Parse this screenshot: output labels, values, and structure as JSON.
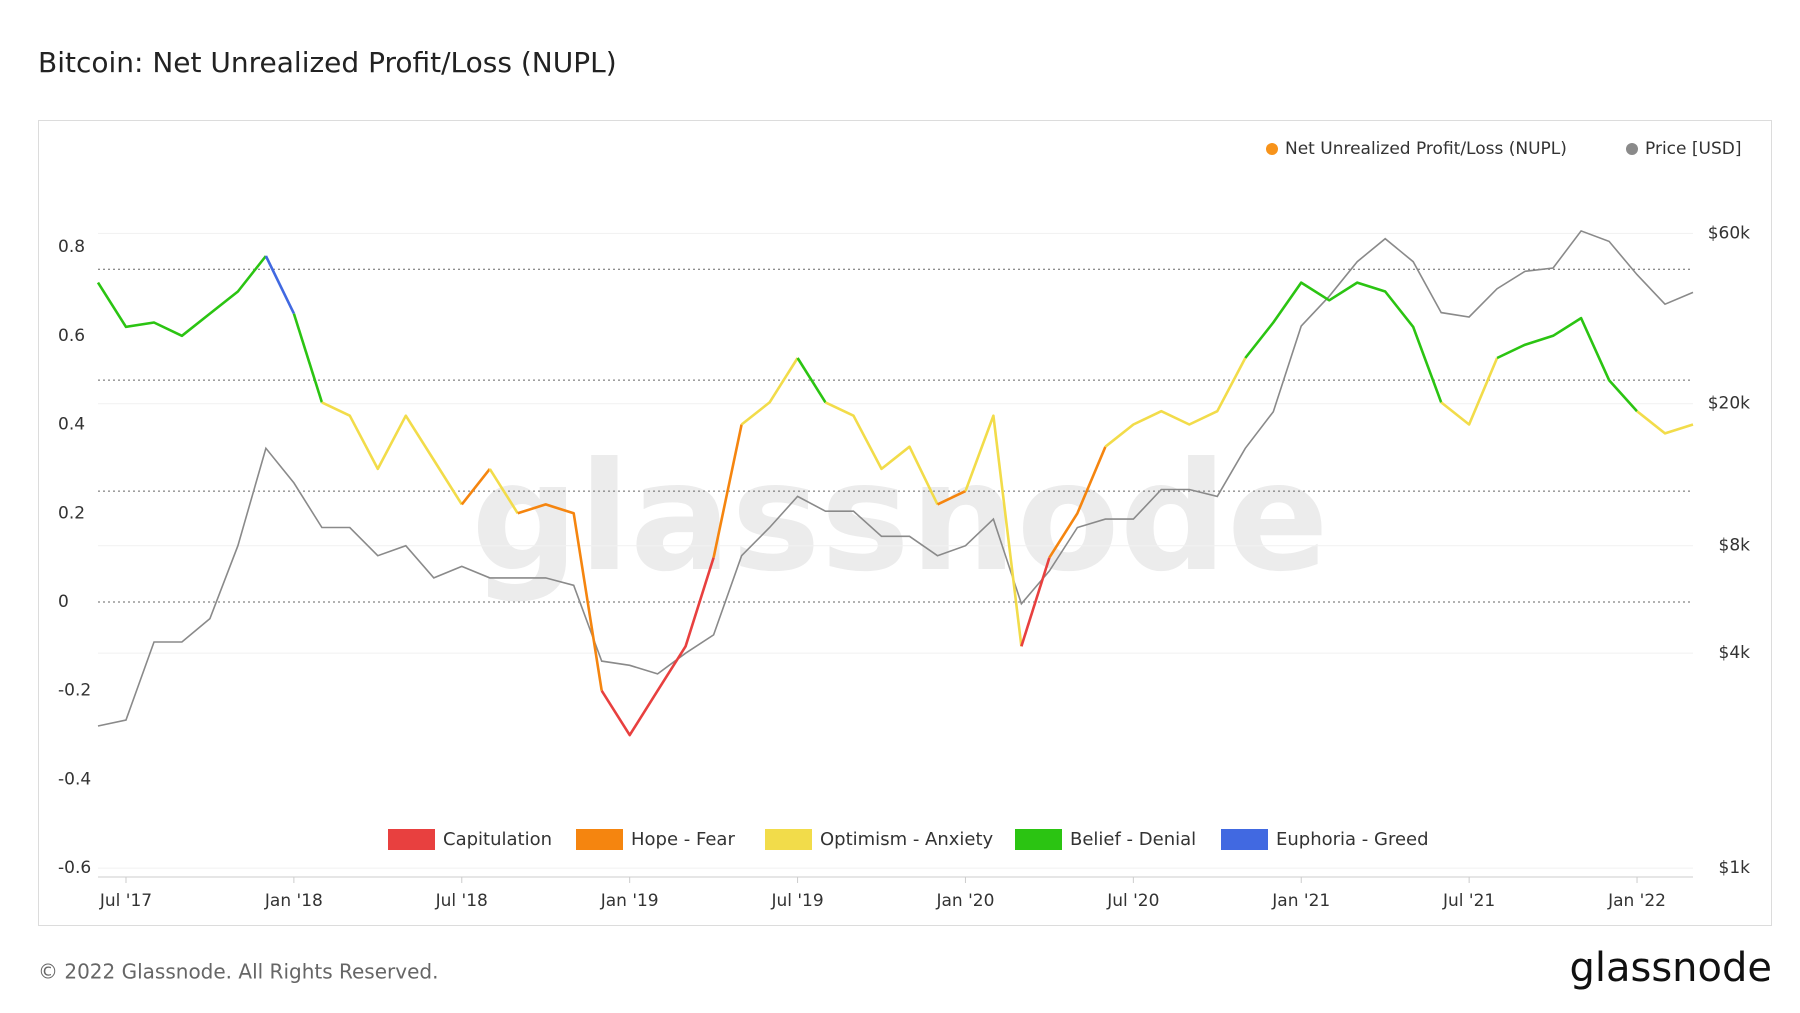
{
  "chart_data": {
    "type": "line",
    "title": "Bitcoin: Net Unrealized Profit/Loss (NUPL)",
    "x": [
      "2017-06",
      "2017-07",
      "2017-08",
      "2017-09",
      "2017-10",
      "2017-11",
      "2017-12",
      "2018-01",
      "2018-02",
      "2018-03",
      "2018-04",
      "2018-05",
      "2018-06",
      "2018-07",
      "2018-08",
      "2018-09",
      "2018-10",
      "2018-11",
      "2018-12",
      "2019-01",
      "2019-02",
      "2019-03",
      "2019-04",
      "2019-05",
      "2019-06",
      "2019-07",
      "2019-08",
      "2019-09",
      "2019-10",
      "2019-11",
      "2019-12",
      "2020-01",
      "2020-02",
      "2020-03",
      "2020-04",
      "2020-05",
      "2020-06",
      "2020-07",
      "2020-08",
      "2020-09",
      "2020-10",
      "2020-11",
      "2020-12",
      "2021-01",
      "2021-02",
      "2021-03",
      "2021-04",
      "2021-05",
      "2021-06",
      "2021-07",
      "2021-08",
      "2021-09",
      "2021-10",
      "2021-11",
      "2021-12",
      "2022-01",
      "2022-02",
      "2022-03"
    ],
    "series": [
      {
        "name": "Net Unrealized Profit/Loss (NUPL)",
        "color": "#f7931a",
        "values": [
          0.72,
          0.62,
          0.63,
          0.6,
          0.65,
          0.7,
          0.78,
          0.65,
          0.45,
          0.42,
          0.3,
          0.42,
          0.32,
          0.22,
          0.3,
          0.2,
          0.22,
          0.2,
          -0.2,
          -0.3,
          -0.2,
          -0.1,
          0.1,
          0.4,
          0.45,
          0.55,
          0.45,
          0.42,
          0.3,
          0.35,
          0.22,
          0.25,
          0.42,
          -0.1,
          0.1,
          0.2,
          0.35,
          0.4,
          0.43,
          0.4,
          0.43,
          0.55,
          0.63,
          0.72,
          0.68,
          0.72,
          0.7,
          0.62,
          0.45,
          0.4,
          0.55,
          0.58,
          0.6,
          0.64,
          0.5,
          0.43,
          0.38,
          0.4
        ]
      },
      {
        "name": "Price [USD]",
        "color": "#8a8a8a",
        "axis": "y2",
        "values": [
          2500,
          2600,
          4300,
          4300,
          5000,
          8000,
          15000,
          12000,
          9000,
          9000,
          7500,
          8000,
          6500,
          7000,
          6500,
          6500,
          6500,
          6200,
          3800,
          3700,
          3500,
          4000,
          4500,
          7500,
          9000,
          11000,
          10000,
          10000,
          8500,
          8500,
          7500,
          8000,
          9500,
          5500,
          6800,
          9000,
          9500,
          9500,
          11500,
          11500,
          11000,
          15000,
          19000,
          33000,
          40000,
          50000,
          58000,
          50000,
          36000,
          35000,
          42000,
          47000,
          48000,
          61000,
          57000,
          46000,
          38000,
          41000
        ]
      }
    ],
    "zones": [
      {
        "name": "Capitulation",
        "color": "#e8403f",
        "from": -1,
        "to": 0
      },
      {
        "name": "Hope - Fear",
        "color": "#f5850f",
        "from": 0,
        "to": 0.25
      },
      {
        "name": "Optimism - Anxiety",
        "color": "#f2dc4a",
        "from": 0.25,
        "to": 0.5
      },
      {
        "name": "Belief - Denial",
        "color": "#2bc412",
        "from": 0.5,
        "to": 0.75
      },
      {
        "name": "Euphoria - Greed",
        "color": "#4169e1",
        "from": 0.75,
        "to": 1
      }
    ],
    "xlim": [
      "2017-06",
      "2022-03"
    ],
    "xticks": [
      {
        "value": "2017-07",
        "label": "Jul '17"
      },
      {
        "value": "2018-01",
        "label": "Jan '18"
      },
      {
        "value": "2018-07",
        "label": "Jul '18"
      },
      {
        "value": "2019-01",
        "label": "Jan '19"
      },
      {
        "value": "2019-07",
        "label": "Jul '19"
      },
      {
        "value": "2020-01",
        "label": "Jan '20"
      },
      {
        "value": "2020-07",
        "label": "Jul '20"
      },
      {
        "value": "2021-01",
        "label": "Jan '21"
      },
      {
        "value": "2021-07",
        "label": "Jul '21"
      },
      {
        "value": "2022-01",
        "label": "Jan '22"
      }
    ],
    "ylim": [
      -0.62,
      0.94
    ],
    "yticks": [
      -0.6,
      -0.4,
      -0.2,
      0,
      0.2,
      0.4,
      0.6,
      0.8
    ],
    "y2lim": [
      944,
      82000
    ],
    "y2_log": true,
    "y2ticks": [
      {
        "value": 1000,
        "label": "$1k"
      },
      {
        "value": 4000,
        "label": "$4k"
      },
      {
        "value": 8000,
        "label": "$8k"
      },
      {
        "value": 20000,
        "label": "$20k"
      },
      {
        "value": 60000,
        "label": "$60k"
      }
    ],
    "legend": "top-right",
    "watermark": "glassnode"
  },
  "footer": {
    "copyright": "© 2022 Glassnode. All Rights Reserved.",
    "logo": "glassnode"
  }
}
